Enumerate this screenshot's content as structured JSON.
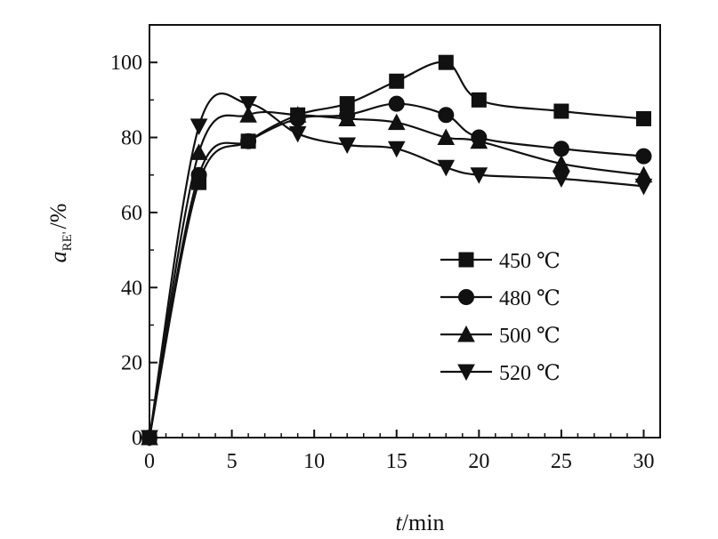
{
  "chart_data": {
    "type": "line",
    "xlabel": {
      "var": "t",
      "unit": "/min"
    },
    "ylabel": {
      "var": "a",
      "sub": "RE'",
      "unit": "/%"
    },
    "xlim": [
      0,
      31
    ],
    "ylim": [
      0,
      110
    ],
    "xticks": [
      0,
      5,
      10,
      15,
      20,
      25,
      30
    ],
    "yticks": [
      0,
      20,
      40,
      60,
      80,
      100
    ],
    "legend_position": "middle-right",
    "grid": false,
    "series": [
      {
        "name": "450 ℃",
        "marker": "square",
        "x": [
          0,
          3,
          6,
          9,
          12,
          15,
          18,
          20,
          25,
          30
        ],
        "y": [
          0,
          68,
          79,
          86,
          89,
          95,
          100,
          90,
          87,
          85
        ]
      },
      {
        "name": "480 ℃",
        "marker": "circle",
        "x": [
          0,
          3,
          6,
          9,
          12,
          15,
          18,
          20,
          25,
          30
        ],
        "y": [
          0,
          70,
          79,
          85,
          86,
          89,
          86,
          80,
          77,
          75
        ]
      },
      {
        "name": "500 ℃",
        "marker": "triangle-up",
        "x": [
          0,
          3,
          6,
          9,
          12,
          15,
          18,
          20,
          25,
          30
        ],
        "y": [
          0,
          76,
          86,
          86,
          85,
          84,
          80,
          79,
          73,
          70
        ]
      },
      {
        "name": "520 ℃",
        "marker": "triangle-down",
        "x": [
          0,
          3,
          6,
          9,
          12,
          15,
          18,
          20,
          25,
          30
        ],
        "y": [
          0,
          83,
          89,
          81,
          78,
          77,
          72,
          70,
          69,
          67
        ]
      }
    ]
  }
}
